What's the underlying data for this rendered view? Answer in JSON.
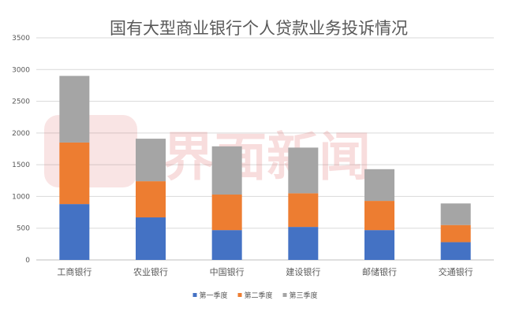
{
  "watermark": {
    "text": "界面新闻",
    "color": "#d94a4a"
  },
  "chart_data": {
    "type": "bar",
    "stacked": true,
    "title": "国有大型商业银行个人贷款业务投诉情况",
    "categories": [
      "工商银行",
      "农业银行",
      "中国银行",
      "建设银行",
      "邮储银行",
      "交通银行"
    ],
    "series": [
      {
        "name": "第一季度",
        "color": "#4472c4",
        "values": [
          880,
          670,
          470,
          520,
          470,
          280
        ]
      },
      {
        "name": "第二季度",
        "color": "#ed7d31",
        "values": [
          970,
          570,
          560,
          530,
          460,
          270
        ]
      },
      {
        "name": "第三季度",
        "color": "#a5a5a5",
        "values": [
          1050,
          670,
          760,
          720,
          500,
          340
        ]
      }
    ],
    "ylim": [
      0,
      3500
    ],
    "yticks": [
      0,
      500,
      1000,
      1500,
      2000,
      2500,
      3000,
      3500
    ],
    "grid": true,
    "legend": "bottom",
    "xlabel": "",
    "ylabel": ""
  }
}
